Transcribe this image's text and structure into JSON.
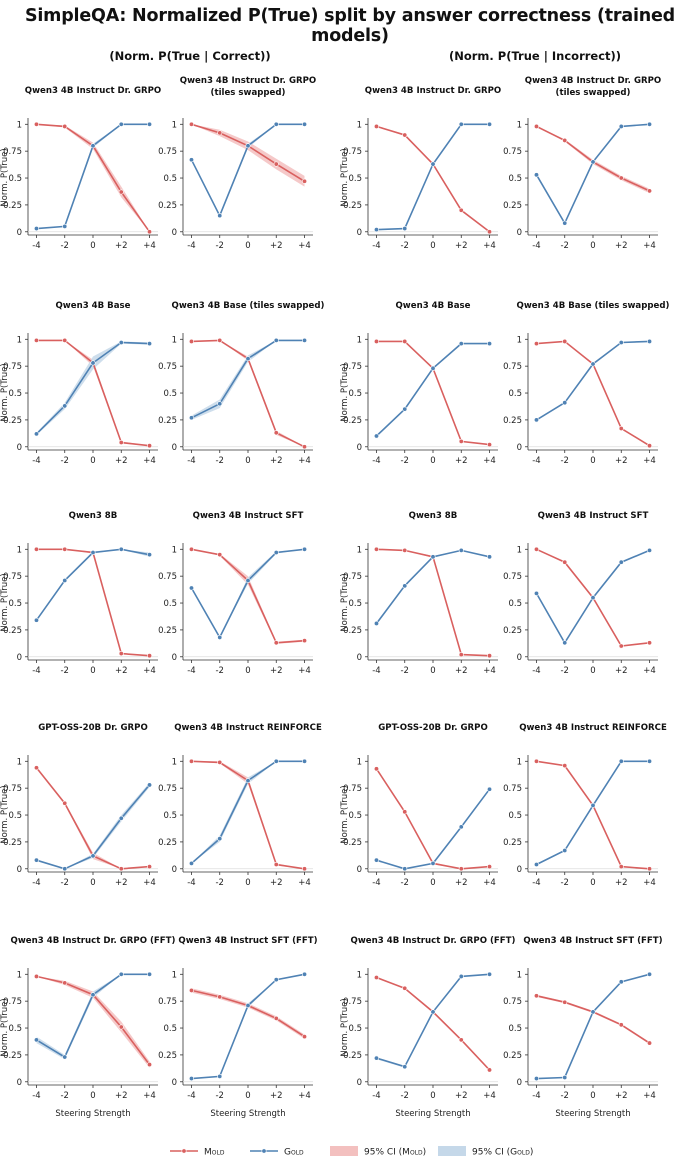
{
  "title": "SimpleQA: Normalized P(True) split by answer correctness (trained models)",
  "group_titles": [
    "(Norm. P(True | Correct))",
    "(Norm. P(True | Incorrect))"
  ],
  "ylabel": "Norm. P(True)",
  "xlabel": "Steering Strength",
  "x_tick_labels": [
    "-4",
    "-2",
    "0",
    "+2",
    "+4"
  ],
  "y_tick_labels": [
    "0",
    "0.25",
    "0.5",
    "0.75",
    "1"
  ],
  "legend": {
    "mold": "Mold",
    "gold": "Gold",
    "ci_mold": "95% CI (Mold)",
    "ci_gold": "95% CI (Gold)"
  },
  "colors": {
    "mold": "#d9605f",
    "gold": "#4f82b4",
    "ci_mold": "#f3c0bf",
    "ci_gold": "#c5d8e9"
  },
  "chart_data": [
    {
      "type": "line",
      "group": "correct",
      "title": "Qwen3 4B Instruct Dr. GRPO",
      "x": [
        -4,
        -2,
        0,
        2,
        4
      ],
      "ylim": [
        0,
        1
      ],
      "series": [
        {
          "name": "Mold",
          "values": [
            1.0,
            0.98,
            0.8,
            0.37,
            0.0
          ],
          "ci": [
            0.0,
            0.01,
            0.03,
            0.05,
            0.0
          ]
        },
        {
          "name": "Gold",
          "values": [
            0.03,
            0.05,
            0.8,
            1.0,
            1.0
          ],
          "ci": [
            0.0,
            0.0,
            0.02,
            0.0,
            0.0
          ]
        }
      ]
    },
    {
      "type": "line",
      "group": "correct",
      "title": "Qwen3 4B Instruct Dr. GRPO (tiles swapped)",
      "x": [
        -4,
        -2,
        0,
        2,
        4
      ],
      "ylim": [
        0,
        1
      ],
      "series": [
        {
          "name": "Mold",
          "values": [
            1.0,
            0.92,
            0.8,
            0.63,
            0.47
          ],
          "ci": [
            0.0,
            0.03,
            0.04,
            0.05,
            0.05
          ]
        },
        {
          "name": "Gold",
          "values": [
            0.67,
            0.15,
            0.8,
            1.0,
            1.0
          ],
          "ci": [
            0.0,
            0.0,
            0.02,
            0.0,
            0.0
          ]
        }
      ]
    },
    {
      "type": "line",
      "group": "incorrect",
      "title": "Qwen3 4B Instruct Dr. GRPO",
      "x": [
        -4,
        -2,
        0,
        2,
        4
      ],
      "ylim": [
        0,
        1
      ],
      "series": [
        {
          "name": "Mold",
          "values": [
            0.98,
            0.9,
            0.63,
            0.2,
            0.0
          ],
          "ci": [
            0.0,
            0.01,
            0.01,
            0.01,
            0.0
          ]
        },
        {
          "name": "Gold",
          "values": [
            0.02,
            0.03,
            0.63,
            1.0,
            1.0
          ],
          "ci": [
            0.0,
            0.0,
            0.01,
            0.0,
            0.0
          ]
        }
      ]
    },
    {
      "type": "line",
      "group": "incorrect",
      "title": "Qwen3 4B Instruct Dr. GRPO (tiles swapped)",
      "x": [
        -4,
        -2,
        0,
        2,
        4
      ],
      "ylim": [
        0,
        1
      ],
      "series": [
        {
          "name": "Mold",
          "values": [
            0.98,
            0.85,
            0.65,
            0.5,
            0.38
          ],
          "ci": [
            0.0,
            0.01,
            0.02,
            0.02,
            0.02
          ]
        },
        {
          "name": "Gold",
          "values": [
            0.53,
            0.08,
            0.65,
            0.98,
            1.0
          ],
          "ci": [
            0.0,
            0.0,
            0.01,
            0.0,
            0.0
          ]
        }
      ]
    },
    {
      "type": "line",
      "group": "correct",
      "title": "Qwen3 4B Base",
      "x": [
        -4,
        -2,
        0,
        2,
        4
      ],
      "ylim": [
        0,
        1
      ],
      "series": [
        {
          "name": "Mold",
          "values": [
            0.99,
            0.99,
            0.78,
            0.04,
            0.01
          ],
          "ci": [
            0.0,
            0.0,
            0.03,
            0.01,
            0.0
          ]
        },
        {
          "name": "Gold",
          "values": [
            0.12,
            0.38,
            0.78,
            0.97,
            0.96
          ],
          "ci": [
            0.01,
            0.03,
            0.06,
            0.01,
            0.01
          ]
        }
      ]
    },
    {
      "type": "line",
      "group": "correct",
      "title": "Qwen3 4B Base (tiles swapped)",
      "x": [
        -4,
        -2,
        0,
        2,
        4
      ],
      "ylim": [
        0,
        1
      ],
      "series": [
        {
          "name": "Mold",
          "values": [
            0.98,
            0.99,
            0.82,
            0.13,
            0.0
          ],
          "ci": [
            0.0,
            0.0,
            0.02,
            0.02,
            0.0
          ]
        },
        {
          "name": "Gold",
          "values": [
            0.27,
            0.4,
            0.82,
            0.99,
            0.99
          ],
          "ci": [
            0.02,
            0.04,
            0.03,
            0.0,
            0.0
          ]
        }
      ]
    },
    {
      "type": "line",
      "group": "incorrect",
      "title": "Qwen3 4B Base",
      "x": [
        -4,
        -2,
        0,
        2,
        4
      ],
      "ylim": [
        0,
        1
      ],
      "series": [
        {
          "name": "Mold",
          "values": [
            0.98,
            0.98,
            0.73,
            0.05,
            0.02
          ],
          "ci": [
            0.0,
            0.0,
            0.01,
            0.0,
            0.0
          ]
        },
        {
          "name": "Gold",
          "values": [
            0.1,
            0.35,
            0.73,
            0.96,
            0.96
          ],
          "ci": [
            0.0,
            0.01,
            0.01,
            0.0,
            0.0
          ]
        }
      ]
    },
    {
      "type": "line",
      "group": "incorrect",
      "title": "Qwen3 4B Base (tiles swapped)",
      "x": [
        -4,
        -2,
        0,
        2,
        4
      ],
      "ylim": [
        0,
        1
      ],
      "series": [
        {
          "name": "Mold",
          "values": [
            0.96,
            0.98,
            0.77,
            0.17,
            0.01
          ],
          "ci": [
            0.0,
            0.0,
            0.01,
            0.01,
            0.0
          ]
        },
        {
          "name": "Gold",
          "values": [
            0.25,
            0.41,
            0.77,
            0.97,
            0.98
          ],
          "ci": [
            0.0,
            0.01,
            0.01,
            0.0,
            0.0
          ]
        }
      ]
    },
    {
      "type": "line",
      "group": "correct",
      "title": "Qwen3 8B",
      "x": [
        -4,
        -2,
        0,
        2,
        4
      ],
      "ylim": [
        0,
        1
      ],
      "series": [
        {
          "name": "Mold",
          "values": [
            1.0,
            1.0,
            0.97,
            0.03,
            0.01
          ],
          "ci": [
            0.0,
            0.0,
            0.01,
            0.0,
            0.0
          ]
        },
        {
          "name": "Gold",
          "values": [
            0.34,
            0.71,
            0.97,
            1.0,
            0.95
          ],
          "ci": [
            0.0,
            0.01,
            0.01,
            0.0,
            0.02
          ]
        }
      ]
    },
    {
      "type": "line",
      "group": "correct",
      "title": "Qwen3 4B Instruct SFT",
      "x": [
        -4,
        -2,
        0,
        2,
        4
      ],
      "ylim": [
        0,
        1
      ],
      "series": [
        {
          "name": "Mold",
          "values": [
            1.0,
            0.95,
            0.71,
            0.13,
            0.15
          ],
          "ci": [
            0.0,
            0.01,
            0.04,
            0.01,
            0.01
          ]
        },
        {
          "name": "Gold",
          "values": [
            0.64,
            0.18,
            0.71,
            0.97,
            1.0
          ],
          "ci": [
            0.0,
            0.0,
            0.03,
            0.01,
            0.0
          ]
        }
      ]
    },
    {
      "type": "line",
      "group": "incorrect",
      "title": "Qwen3 8B",
      "x": [
        -4,
        -2,
        0,
        2,
        4
      ],
      "ylim": [
        0,
        1
      ],
      "series": [
        {
          "name": "Mold",
          "values": [
            1.0,
            0.99,
            0.93,
            0.02,
            0.01
          ],
          "ci": [
            0.0,
            0.0,
            0.01,
            0.0,
            0.0
          ]
        },
        {
          "name": "Gold",
          "values": [
            0.31,
            0.66,
            0.93,
            0.99,
            0.93
          ],
          "ci": [
            0.0,
            0.0,
            0.01,
            0.0,
            0.0
          ]
        }
      ]
    },
    {
      "type": "line",
      "group": "incorrect",
      "title": "Qwen3 4B Instruct SFT",
      "x": [
        -4,
        -2,
        0,
        2,
        4
      ],
      "ylim": [
        0,
        1
      ],
      "series": [
        {
          "name": "Mold",
          "values": [
            1.0,
            0.88,
            0.55,
            0.1,
            0.13
          ],
          "ci": [
            0.0,
            0.01,
            0.01,
            0.0,
            0.0
          ]
        },
        {
          "name": "Gold",
          "values": [
            0.59,
            0.13,
            0.55,
            0.88,
            0.99
          ],
          "ci": [
            0.0,
            0.0,
            0.01,
            0.0,
            0.0
          ]
        }
      ]
    },
    {
      "type": "line",
      "group": "correct",
      "title": "GPT-OSS-20B Dr. GRPO",
      "x": [
        -4,
        -2,
        0,
        2,
        4
      ],
      "ylim": [
        0,
        1
      ],
      "series": [
        {
          "name": "Mold",
          "values": [
            0.94,
            0.61,
            0.12,
            0.0,
            0.02
          ],
          "ci": [
            0.0,
            0.01,
            0.03,
            0.0,
            0.0
          ]
        },
        {
          "name": "Gold",
          "values": [
            0.08,
            0.0,
            0.12,
            0.47,
            0.78
          ],
          "ci": [
            0.0,
            0.0,
            0.02,
            0.03,
            0.02
          ]
        }
      ]
    },
    {
      "type": "line",
      "group": "correct",
      "title": "Qwen3 4B Instruct REINFORCE",
      "x": [
        -4,
        -2,
        0,
        2,
        4
      ],
      "ylim": [
        0,
        1
      ],
      "series": [
        {
          "name": "Mold",
          "values": [
            1.0,
            0.99,
            0.82,
            0.04,
            0.0
          ],
          "ci": [
            0.0,
            0.01,
            0.03,
            0.01,
            0.0
          ]
        },
        {
          "name": "Gold",
          "values": [
            0.05,
            0.28,
            0.82,
            1.0,
            1.0
          ],
          "ci": [
            0.0,
            0.03,
            0.03,
            0.0,
            0.0
          ]
        }
      ]
    },
    {
      "type": "line",
      "group": "incorrect",
      "title": "GPT-OSS-20B Dr. GRPO",
      "x": [
        -4,
        -2,
        0,
        2,
        4
      ],
      "ylim": [
        0,
        1
      ],
      "series": [
        {
          "name": "Mold",
          "values": [
            0.93,
            0.53,
            0.05,
            0.0,
            0.02
          ],
          "ci": [
            0.0,
            0.0,
            0.01,
            0.0,
            0.0
          ]
        },
        {
          "name": "Gold",
          "values": [
            0.08,
            0.0,
            0.05,
            0.39,
            0.74
          ],
          "ci": [
            0.0,
            0.0,
            0.0,
            0.0,
            0.0
          ]
        }
      ]
    },
    {
      "type": "line",
      "group": "incorrect",
      "title": "Qwen3 4B Instruct REINFORCE",
      "x": [
        -4,
        -2,
        0,
        2,
        4
      ],
      "ylim": [
        0,
        1
      ],
      "series": [
        {
          "name": "Mold",
          "values": [
            1.0,
            0.96,
            0.59,
            0.02,
            0.0
          ],
          "ci": [
            0.0,
            0.0,
            0.01,
            0.0,
            0.0
          ]
        },
        {
          "name": "Gold",
          "values": [
            0.04,
            0.17,
            0.59,
            1.0,
            1.0
          ],
          "ci": [
            0.0,
            0.0,
            0.01,
            0.0,
            0.0
          ]
        }
      ]
    },
    {
      "type": "line",
      "group": "correct",
      "title": "Qwen3 4B Instruct Dr. GRPO (FFT)",
      "x": [
        -4,
        -2,
        0,
        2,
        4
      ],
      "ylim": [
        0,
        1
      ],
      "series": [
        {
          "name": "Mold",
          "values": [
            0.98,
            0.92,
            0.81,
            0.51,
            0.16
          ],
          "ci": [
            0.0,
            0.02,
            0.03,
            0.05,
            0.03
          ]
        },
        {
          "name": "Gold",
          "values": [
            0.39,
            0.23,
            0.81,
            1.0,
            1.0
          ],
          "ci": [
            0.03,
            0.02,
            0.03,
            0.0,
            0.0
          ]
        }
      ]
    },
    {
      "type": "line",
      "group": "correct",
      "title": "Qwen3 4B Instruct SFT (FFT)",
      "x": [
        -4,
        -2,
        0,
        2,
        4
      ],
      "ylim": [
        0,
        1
      ],
      "series": [
        {
          "name": "Mold",
          "values": [
            0.85,
            0.79,
            0.71,
            0.59,
            0.42
          ],
          "ci": [
            0.02,
            0.02,
            0.02,
            0.02,
            0.02
          ]
        },
        {
          "name": "Gold",
          "values": [
            0.03,
            0.05,
            0.71,
            0.95,
            1.0
          ],
          "ci": [
            0.0,
            0.0,
            0.02,
            0.0,
            0.0
          ]
        }
      ]
    },
    {
      "type": "line",
      "group": "incorrect",
      "title": "Qwen3 4B Instruct Dr. GRPO (FFT)",
      "x": [
        -4,
        -2,
        0,
        2,
        4
      ],
      "ylim": [
        0,
        1
      ],
      "series": [
        {
          "name": "Mold",
          "values": [
            0.97,
            0.87,
            0.65,
            0.39,
            0.11
          ],
          "ci": [
            0.0,
            0.01,
            0.01,
            0.01,
            0.01
          ]
        },
        {
          "name": "Gold",
          "values": [
            0.22,
            0.14,
            0.65,
            0.98,
            1.0
          ],
          "ci": [
            0.01,
            0.01,
            0.01,
            0.0,
            0.0
          ]
        }
      ]
    },
    {
      "type": "line",
      "group": "incorrect",
      "title": "Qwen3 4B Instruct SFT (FFT)",
      "x": [
        -4,
        -2,
        0,
        2,
        4
      ],
      "ylim": [
        0,
        1
      ],
      "series": [
        {
          "name": "Mold",
          "values": [
            0.8,
            0.74,
            0.65,
            0.53,
            0.36
          ],
          "ci": [
            0.01,
            0.01,
            0.01,
            0.01,
            0.01
          ]
        },
        {
          "name": "Gold",
          "values": [
            0.03,
            0.04,
            0.65,
            0.93,
            1.0
          ],
          "ci": [
            0.0,
            0.0,
            0.01,
            0.0,
            0.0
          ]
        }
      ]
    }
  ]
}
